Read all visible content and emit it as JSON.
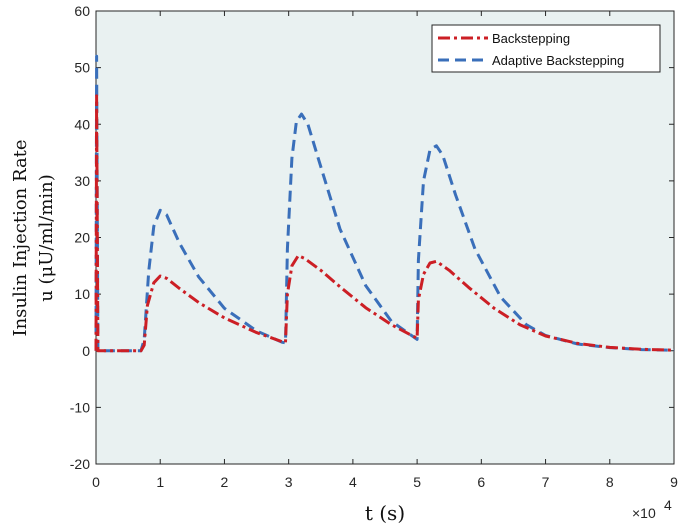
{
  "chart_data": {
    "type": "line",
    "title": "",
    "xlabel": "t (s)",
    "ylabel_lines": [
      "Insulin Injection Rate",
      "u (μU/ml/min)"
    ],
    "x_multiplier": "×10",
    "x_multiplier_exp": "4",
    "xlim": [
      0,
      9
    ],
    "ylim": [
      -20,
      60
    ],
    "x_ticks": [
      0,
      1,
      2,
      3,
      4,
      5,
      6,
      7,
      8,
      9
    ],
    "y_ticks": [
      -20,
      -10,
      0,
      10,
      20,
      30,
      40,
      50,
      60
    ],
    "x_tick_labels": [
      "0",
      "1",
      "2",
      "3",
      "4",
      "5",
      "6",
      "7",
      "8",
      "9"
    ],
    "y_tick_labels": [
      "-20",
      "-10",
      "0",
      "10",
      "20",
      "30",
      "40",
      "50",
      "60"
    ],
    "grid": false,
    "plot_background": "#e9f1f1",
    "legend_position": "top-right",
    "series": [
      {
        "name": "Backstepping",
        "color": "#cc1f25",
        "style": "dash-dot",
        "points": [
          [
            0,
            0
          ],
          [
            0.01,
            45
          ],
          [
            0.03,
            0
          ],
          [
            0.7,
            0
          ],
          [
            0.75,
            1
          ],
          [
            0.8,
            8
          ],
          [
            0.9,
            12
          ],
          [
            1.0,
            13.2
          ],
          [
            1.1,
            12.8
          ],
          [
            1.3,
            11
          ],
          [
            1.6,
            8.5
          ],
          [
            2.0,
            5.8
          ],
          [
            2.5,
            3.2
          ],
          [
            2.9,
            1.6
          ],
          [
            2.95,
            1.5
          ],
          [
            2.98,
            10
          ],
          [
            3.05,
            15
          ],
          [
            3.15,
            16.8
          ],
          [
            3.25,
            16.3
          ],
          [
            3.5,
            14.2
          ],
          [
            3.8,
            11.3
          ],
          [
            4.2,
            7.6
          ],
          [
            4.6,
            4.6
          ],
          [
            5.0,
            2.2
          ],
          [
            5.02,
            9
          ],
          [
            5.1,
            13.5
          ],
          [
            5.2,
            15.5
          ],
          [
            5.3,
            15.8
          ],
          [
            5.5,
            14.2
          ],
          [
            5.8,
            11.2
          ],
          [
            6.2,
            7.5
          ],
          [
            6.6,
            4.6
          ],
          [
            7.0,
            2.6
          ],
          [
            7.5,
            1.3
          ],
          [
            8.0,
            0.6
          ],
          [
            8.5,
            0.25
          ],
          [
            9.0,
            0.1
          ]
        ]
      },
      {
        "name": "Adaptive Backstepping",
        "color": "#3a6fba",
        "style": "dashed",
        "points": [
          [
            0,
            0
          ],
          [
            0.01,
            52
          ],
          [
            0.03,
            0
          ],
          [
            0.7,
            0
          ],
          [
            0.75,
            2
          ],
          [
            0.82,
            14
          ],
          [
            0.9,
            22
          ],
          [
            1.0,
            24.8
          ],
          [
            1.1,
            24
          ],
          [
            1.3,
            19
          ],
          [
            1.6,
            13
          ],
          [
            2.0,
            7.5
          ],
          [
            2.5,
            3.5
          ],
          [
            2.9,
            1.5
          ],
          [
            2.95,
            1.4
          ],
          [
            2.98,
            18
          ],
          [
            3.05,
            34
          ],
          [
            3.12,
            40.5
          ],
          [
            3.2,
            41.8
          ],
          [
            3.3,
            40
          ],
          [
            3.5,
            32.5
          ],
          [
            3.8,
            21.5
          ],
          [
            4.2,
            11.5
          ],
          [
            4.6,
            5.2
          ],
          [
            5.0,
            2.0
          ],
          [
            5.02,
            16
          ],
          [
            5.1,
            30
          ],
          [
            5.2,
            35.5
          ],
          [
            5.3,
            36.2
          ],
          [
            5.4,
            34.5
          ],
          [
            5.6,
            27.5
          ],
          [
            5.9,
            18
          ],
          [
            6.3,
            9.5
          ],
          [
            6.7,
            4.6
          ],
          [
            7.0,
            2.7
          ],
          [
            7.5,
            1.2
          ],
          [
            8.0,
            0.55
          ],
          [
            8.5,
            0.2
          ],
          [
            9.0,
            0.08
          ]
        ]
      }
    ]
  }
}
